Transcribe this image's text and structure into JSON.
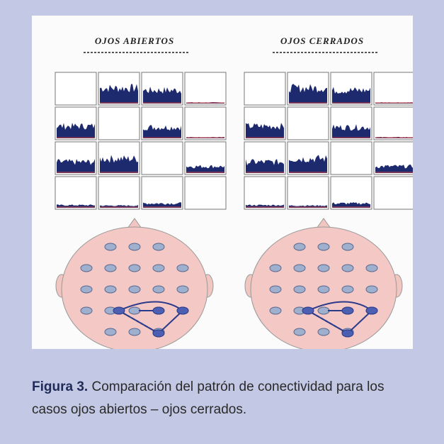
{
  "figure": {
    "panels": [
      {
        "title": "OJOS ABIERTOS"
      },
      {
        "title": "OJOS CERRADOS"
      }
    ]
  },
  "caption": {
    "label": "Figura 3.",
    "text": "Comparación del patrón de conectividad para los casos ojos abiertos – ojos cerrados."
  }
}
